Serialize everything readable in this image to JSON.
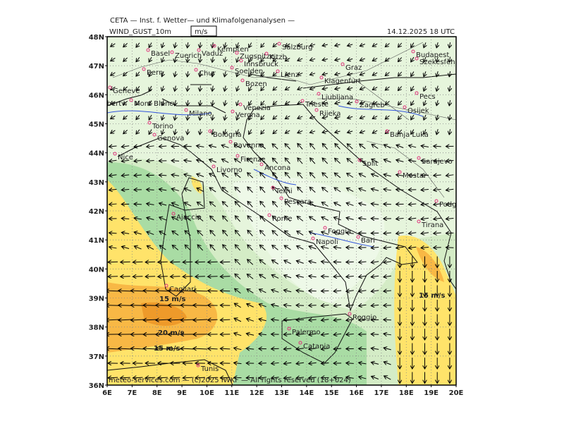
{
  "header": {
    "title": "CETA — Inst. f. Wetter— und Klimafolgenanalysen —",
    "field": "WIND_GUST_10m",
    "unit": "m/s",
    "datetime": "14.12.2025  18 UTC"
  },
  "axes": {
    "lat_labels": [
      "48N",
      "47N",
      "46N",
      "45N",
      "44N",
      "43N",
      "42N",
      "41N",
      "40N",
      "39N",
      "38N",
      "37N",
      "36N"
    ],
    "lon_labels": [
      "6E",
      "7E",
      "8E",
      "9E",
      "10E",
      "11E",
      "12E",
      "13E",
      "14E",
      "15E",
      "16E",
      "17E",
      "18E",
      "19E",
      "20E"
    ]
  },
  "cities": [
    "Basel",
    "Zuerich",
    "Vaduz",
    "Kempten",
    "Salzburg",
    "Zugspitze",
    "Innsbruck",
    "Kitzb.",
    "Bern",
    "Chur",
    "Soelden",
    "Lienz",
    "Graz",
    "Budapest",
    "Szekesfeh",
    "Klagenfurt",
    "Bozen",
    "Geneve",
    "Albertv.",
    "Mont Blanc",
    "Ljubljana",
    "Zagreb",
    "Pecs",
    "Osijek",
    "Venezia",
    "Verona",
    "Milano",
    "Trieste",
    "Rijeka",
    "Torino",
    "Banja Luka",
    "Bologna",
    "Genova",
    "Ravenna",
    "Sarajevo",
    "Nice",
    "Firenze",
    "Split",
    "Livorno",
    "Ancona",
    "Mostar",
    "Terni",
    "Pescara",
    "Podgorica",
    "Ajaccio",
    "Rome",
    "Foggia",
    "Tirana",
    "Bari",
    "Napoli",
    "Cagliari",
    "Palermo",
    "Reggio",
    "Catania",
    "Tunis"
  ],
  "contour_labels": [
    "15 m/s",
    "20 m/s",
    "15 m/s",
    "15 m/s"
  ],
  "footer": "meteo-services.com — (c)2025 IWKF — All rights reserved (18+024)"
}
